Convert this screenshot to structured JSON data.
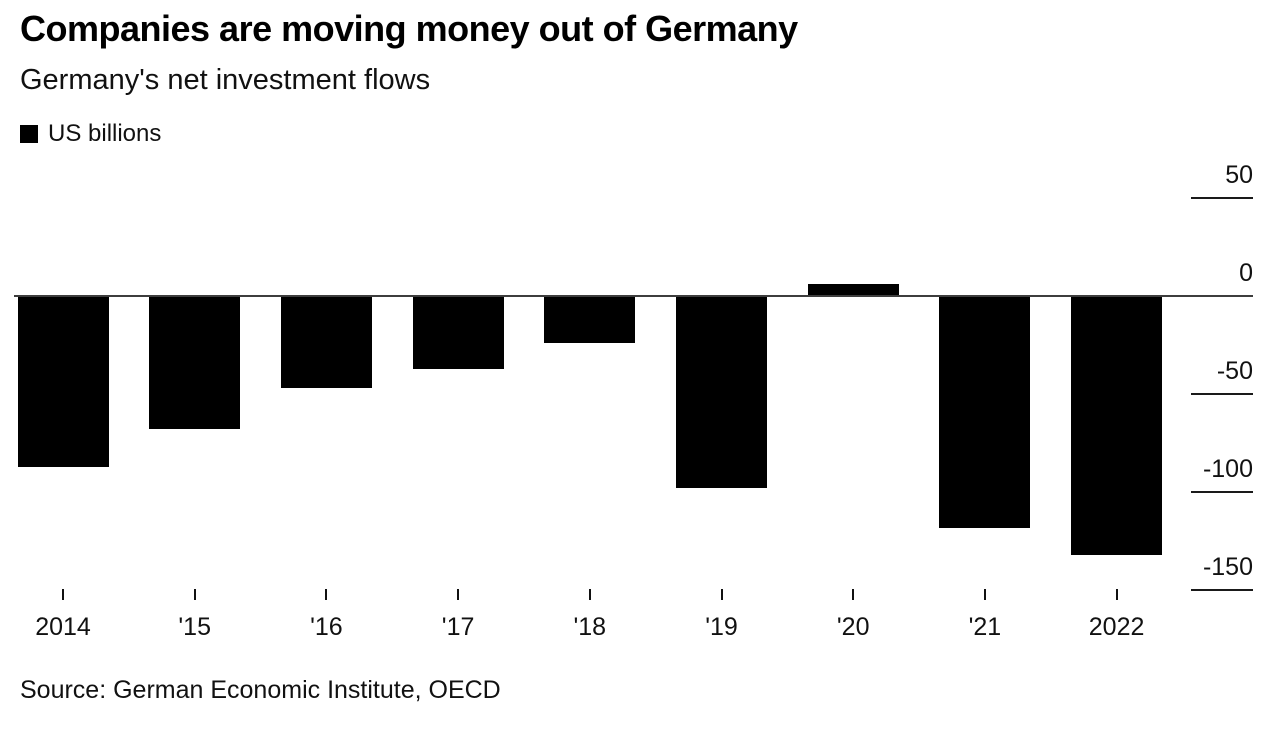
{
  "header": {
    "title": "Companies are moving money out of Germany",
    "subtitle": "Germany's net investment flows"
  },
  "legend": {
    "label": "US billions",
    "swatch_color": "#000000"
  },
  "source": "Source: German Economic Institute, OECD",
  "chart_data": {
    "type": "bar",
    "title": "Companies are moving money out of Germany",
    "subtitle": "Germany's net investment flows",
    "unit": "US billions",
    "categories": [
      "2014",
      "'15",
      "'16",
      "'17",
      "'18",
      "'19",
      "'20",
      "'21",
      "2022"
    ],
    "values": [
      -87,
      -68,
      -47,
      -37,
      -24,
      -98,
      6,
      -118,
      -132
    ],
    "bar_color": "#000000",
    "xlabel": "",
    "ylabel": "US billions",
    "ylim": [
      -160,
      60
    ],
    "y_ticks": [
      {
        "label": "50",
        "value": 50
      },
      {
        "label": "0",
        "value": 0
      },
      {
        "label": "-50",
        "value": -50
      },
      {
        "label": "-100",
        "value": -100
      },
      {
        "label": "-150",
        "value": -150
      }
    ],
    "grid": "right-side tick segments only; full-width zero baseline",
    "legend_position": "top-left",
    "axis_side": "right",
    "source": "Source: German Economic Institute, OECD"
  }
}
